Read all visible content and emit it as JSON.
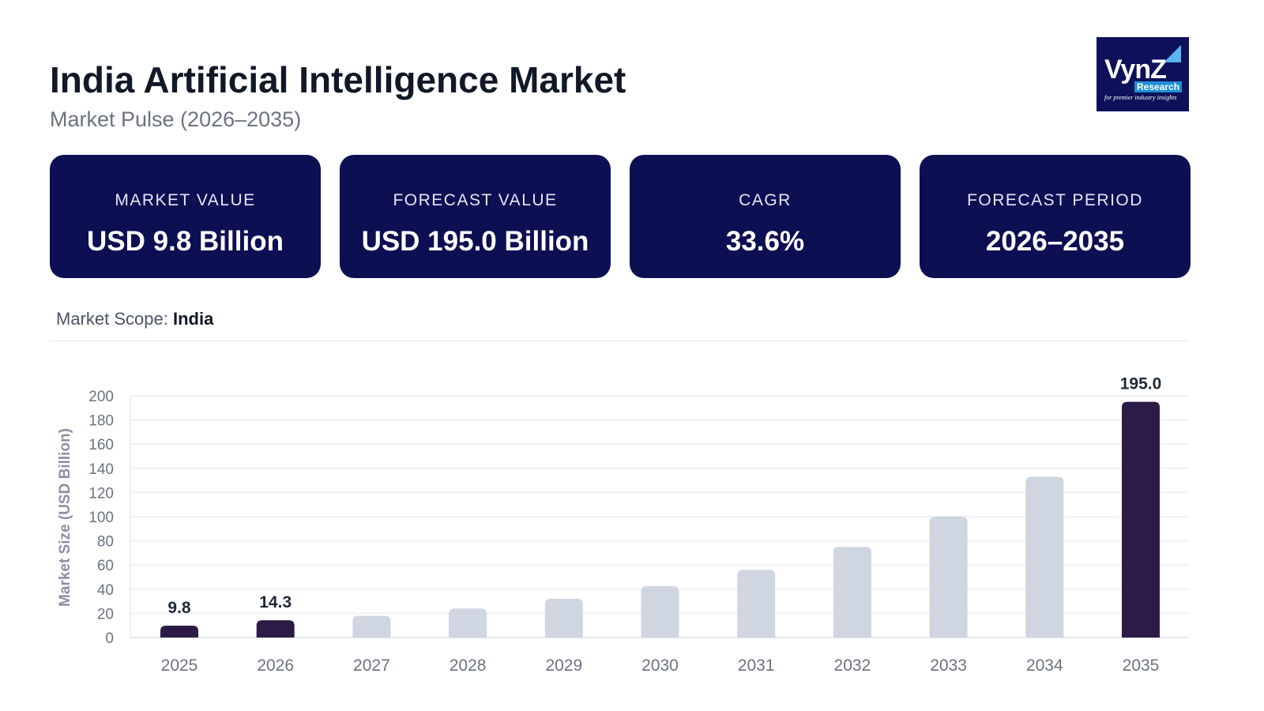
{
  "header": {
    "title": "India Artificial Intelligence Market",
    "subtitle": "Market Pulse (2026–2035)"
  },
  "logo": {
    "text": "VynZ Research",
    "tagline": "for premier industry insights"
  },
  "cards": [
    {
      "label": "MARKET VALUE",
      "value": "USD 9.8 Billion"
    },
    {
      "label": "FORECAST VALUE",
      "value": "USD 195.0 Billion"
    },
    {
      "label": "CAGR",
      "value": "33.6%"
    },
    {
      "label": "FORECAST PERIOD",
      "value": "2026–2035"
    }
  ],
  "scope": {
    "label": "Market Scope:",
    "value": "India"
  },
  "colors": {
    "highlight": "#2d1b47",
    "muted": "#cfd6e1",
    "card": "#0c0f52"
  },
  "chart_data": {
    "type": "bar",
    "ylabel": "Market Size (USD Billion)",
    "ylim": [
      0,
      200
    ],
    "yticks": [
      0,
      20,
      40,
      60,
      80,
      100,
      120,
      140,
      160,
      180,
      200
    ],
    "grid": true,
    "categories": [
      "2025",
      "2026",
      "2027",
      "2028",
      "2029",
      "2030",
      "2031",
      "2032",
      "2033",
      "2034",
      "2035"
    ],
    "values": [
      9.8,
      14.3,
      18,
      24,
      32,
      42.5,
      56,
      75,
      100,
      133,
      195.0
    ],
    "highlighted": [
      "2025",
      "2026",
      "2035"
    ],
    "data_labels": {
      "2025": "9.8",
      "2026": "14.3",
      "2035": "195.0"
    }
  }
}
